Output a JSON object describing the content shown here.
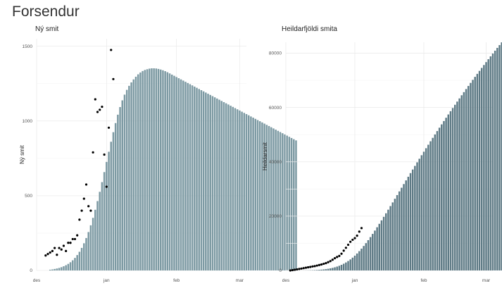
{
  "page": {
    "title": "Forsendur"
  },
  "chart_data": [
    {
      "type": "bar",
      "title": "Ný smit",
      "xlabel": "",
      "ylabel": "Ný smit",
      "x_start": "2020-12-07",
      "xticks": [
        {
          "label": "des",
          "date": "2020-12-01"
        },
        {
          "label": "jan",
          "date": "2021-01-01"
        },
        {
          "label": "feb",
          "date": "2021-02-01"
        },
        {
          "label": "mar",
          "date": "2021-03-01"
        }
      ],
      "xlim": [
        "2020-12-01",
        "2021-03-04"
      ],
      "ylim": [
        0,
        1550
      ],
      "yticks": [
        0,
        500,
        1000,
        1500
      ],
      "grid": true,
      "bar_color": "#7d9aa3",
      "bars": [
        5,
        7,
        10,
        13,
        17,
        22,
        28,
        35,
        44,
        55,
        68,
        84,
        103,
        125,
        151,
        182,
        217,
        257,
        302,
        352,
        406,
        464,
        526,
        591,
        658,
        726,
        794,
        861,
        925,
        986,
        1042,
        1093,
        1138,
        1176,
        1208,
        1235,
        1258,
        1278,
        1296,
        1312,
        1324,
        1334,
        1341,
        1346,
        1350,
        1352,
        1352,
        1351,
        1348,
        1344,
        1339,
        1333,
        1326,
        1318,
        1310,
        1302,
        1294,
        1286,
        1278,
        1270,
        1262,
        1254,
        1246,
        1238,
        1230,
        1222,
        1214,
        1206,
        1198,
        1190,
        1182,
        1174,
        1166,
        1158,
        1150,
        1142,
        1134,
        1126,
        1118,
        1110,
        1102,
        1094,
        1086,
        1078,
        1070,
        1062,
        1054,
        1046,
        1038,
        1030,
        1022,
        1014,
        1006,
        998,
        990,
        982,
        974,
        966,
        958,
        950,
        942,
        934,
        926,
        918,
        910,
        902,
        894,
        886,
        878,
        870
      ],
      "points": [
        {
          "x": "2020-12-05",
          "y": 100
        },
        {
          "x": "2020-12-06",
          "y": 110
        },
        {
          "x": "2020-12-07",
          "y": 120
        },
        {
          "x": "2020-12-08",
          "y": 130
        },
        {
          "x": "2020-12-09",
          "y": 150
        },
        {
          "x": "2020-12-10",
          "y": 105
        },
        {
          "x": "2020-12-11",
          "y": 150
        },
        {
          "x": "2020-12-12",
          "y": 140
        },
        {
          "x": "2020-12-13",
          "y": 165
        },
        {
          "x": "2020-12-14",
          "y": 130
        },
        {
          "x": "2020-12-15",
          "y": 185
        },
        {
          "x": "2020-12-16",
          "y": 185
        },
        {
          "x": "2020-12-17",
          "y": 210
        },
        {
          "x": "2020-12-18",
          "y": 210
        },
        {
          "x": "2020-12-19",
          "y": 235
        },
        {
          "x": "2020-12-20",
          "y": 340
        },
        {
          "x": "2020-12-21",
          "y": 400
        },
        {
          "x": "2020-12-22",
          "y": 480
        },
        {
          "x": "2020-12-23",
          "y": 575
        },
        {
          "x": "2020-12-24",
          "y": 430
        },
        {
          "x": "2020-12-25",
          "y": 400
        },
        {
          "x": "2020-12-26",
          "y": 790
        },
        {
          "x": "2020-12-27",
          "y": 1145
        },
        {
          "x": "2020-12-28",
          "y": 1060
        },
        {
          "x": "2020-12-29",
          "y": 1075
        },
        {
          "x": "2020-12-30",
          "y": 1095
        },
        {
          "x": "2020-12-31",
          "y": 775
        },
        {
          "x": "2021-01-01",
          "y": 560
        },
        {
          "x": "2021-01-02",
          "y": 955
        },
        {
          "x": "2021-01-03",
          "y": 1475
        },
        {
          "x": "2021-01-04",
          "y": 1280
        }
      ]
    },
    {
      "type": "bar",
      "title": "Heildarfjöldi smita",
      "xlabel": "",
      "ylabel": "Heildarsmit",
      "x_start": "2020-12-07",
      "xticks": [
        {
          "label": "des",
          "date": "2020-12-01"
        },
        {
          "label": "jan",
          "date": "2021-01-01"
        },
        {
          "label": "feb",
          "date": "2021-02-01"
        },
        {
          "label": "mar",
          "date": "2021-03-01"
        }
      ],
      "xlim": [
        "2020-12-01",
        "2021-03-04"
      ],
      "ylim": [
        0,
        84000
      ],
      "yticks": [
        0,
        20000,
        40000,
        60000,
        80000
      ],
      "grid": true,
      "bar_color": "#5e7a85",
      "bars_from_series": 0,
      "start_total": 0,
      "points": [
        {
          "x": "2020-12-03",
          "y": 0
        },
        {
          "x": "2020-12-04",
          "y": 120
        },
        {
          "x": "2020-12-05",
          "y": 260
        },
        {
          "x": "2020-12-06",
          "y": 400
        },
        {
          "x": "2020-12-07",
          "y": 560
        },
        {
          "x": "2020-12-08",
          "y": 700
        },
        {
          "x": "2020-12-09",
          "y": 860
        },
        {
          "x": "2020-12-10",
          "y": 1000
        },
        {
          "x": "2020-12-11",
          "y": 1160
        },
        {
          "x": "2020-12-12",
          "y": 1300
        },
        {
          "x": "2020-12-13",
          "y": 1480
        },
        {
          "x": "2020-12-14",
          "y": 1600
        },
        {
          "x": "2020-12-15",
          "y": 1800
        },
        {
          "x": "2020-12-16",
          "y": 2000
        },
        {
          "x": "2020-12-17",
          "y": 2200
        },
        {
          "x": "2020-12-18",
          "y": 2450
        },
        {
          "x": "2020-12-19",
          "y": 2700
        },
        {
          "x": "2020-12-20",
          "y": 3050
        },
        {
          "x": "2020-12-21",
          "y": 3450
        },
        {
          "x": "2020-12-22",
          "y": 3950
        },
        {
          "x": "2020-12-23",
          "y": 4500
        },
        {
          "x": "2020-12-24",
          "y": 4950
        },
        {
          "x": "2020-12-25",
          "y": 5350
        },
        {
          "x": "2020-12-26",
          "y": 6150
        },
        {
          "x": "2020-12-27",
          "y": 7300
        },
        {
          "x": "2020-12-28",
          "y": 8350
        },
        {
          "x": "2020-12-29",
          "y": 9450
        },
        {
          "x": "2020-12-30",
          "y": 10550
        },
        {
          "x": "2020-12-31",
          "y": 11300
        },
        {
          "x": "2021-01-01",
          "y": 11900
        },
        {
          "x": "2021-01-02",
          "y": 12800
        },
        {
          "x": "2021-01-03",
          "y": 14300
        },
        {
          "x": "2021-01-04",
          "y": 15600
        }
      ]
    }
  ]
}
